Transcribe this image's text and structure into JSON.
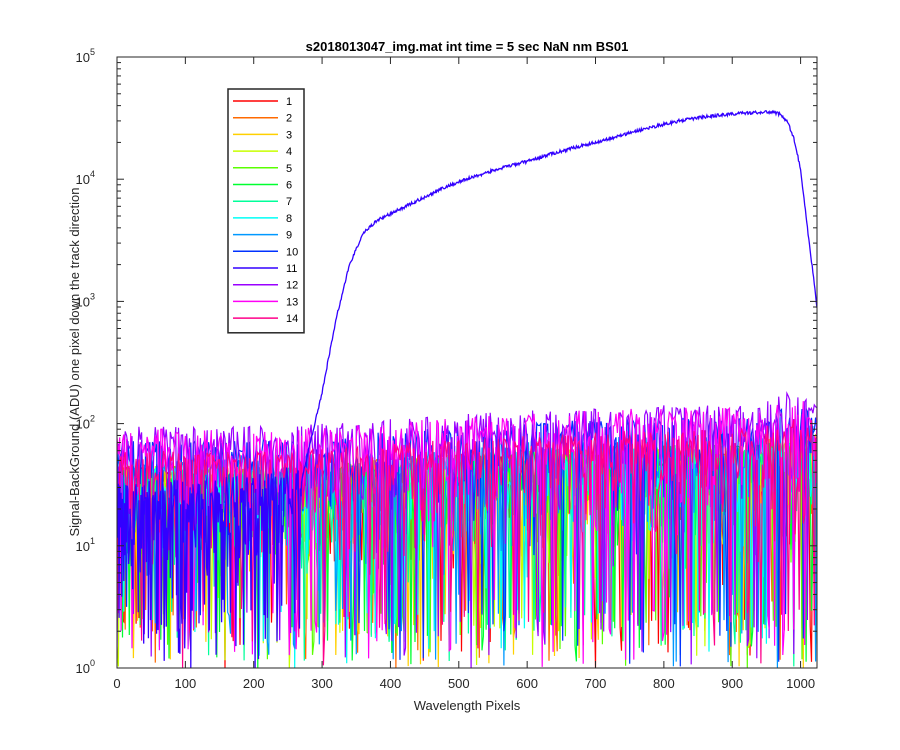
{
  "chart_data": {
    "type": "line",
    "title": "s2018013047_img.mat int time = 5 sec  NaN nm BS01",
    "xlabel": "Wavelength Pixels",
    "ylabel": "Signal-BackGround (ADU) one pixel down the track direction",
    "xlim": [
      0,
      1024
    ],
    "ylim": [
      1,
      100000
    ],
    "yscale": "log",
    "grid": false,
    "legend_position": "top-left",
    "x_ticks": [
      0,
      100,
      200,
      300,
      400,
      500,
      600,
      700,
      800,
      900,
      1000
    ],
    "x_tick_labels": [
      "0",
      "100",
      "200",
      "300",
      "400",
      "500",
      "600",
      "700",
      "800",
      "900",
      "1000"
    ],
    "y_ticks": [
      1,
      10,
      100,
      1000,
      10000,
      100000
    ],
    "y_tick_labels": [
      {
        "base": "10",
        "exp": "0"
      },
      {
        "base": "10",
        "exp": "1"
      },
      {
        "base": "10",
        "exp": "2"
      },
      {
        "base": "10",
        "exp": "3"
      },
      {
        "base": "10",
        "exp": "4"
      },
      {
        "base": "10",
        "exp": "5"
      }
    ],
    "series": [
      {
        "name": "1",
        "color": "#ff0000",
        "envelope": "noise",
        "max": 45
      },
      {
        "name": "2",
        "color": "#ff6a00",
        "envelope": "noise",
        "max": 45
      },
      {
        "name": "3",
        "color": "#ffd000",
        "envelope": "noise",
        "max": 45
      },
      {
        "name": "4",
        "color": "#c8ff00",
        "envelope": "noise",
        "max": 45
      },
      {
        "name": "5",
        "color": "#5aff00",
        "envelope": "noise",
        "max": 45
      },
      {
        "name": "6",
        "color": "#00ff30",
        "envelope": "noise",
        "max": 45
      },
      {
        "name": "7",
        "color": "#00ff9a",
        "envelope": "noise",
        "max": 45
      },
      {
        "name": "8",
        "color": "#00fff6",
        "envelope": "noise",
        "max": 45
      },
      {
        "name": "9",
        "color": "#0099ff",
        "envelope": "noise",
        "max": 55
      },
      {
        "name": "10",
        "color": "#0032ff",
        "envelope": "noise",
        "max": 75
      },
      {
        "name": "11",
        "color": "#3200ff",
        "envelope": "signal",
        "x": [
          0,
          240,
          265,
          280,
          300,
          320,
          340,
          360,
          380,
          400,
          420,
          440,
          460,
          480,
          500,
          520,
          540,
          560,
          580,
          600,
          620,
          640,
          660,
          680,
          700,
          720,
          740,
          760,
          780,
          800,
          820,
          840,
          860,
          880,
          900,
          920,
          940,
          960,
          970,
          980,
          990,
          1000,
          1010,
          1020,
          1024
        ],
        "values": [
          15,
          18,
          25,
          60,
          180,
          700,
          2000,
          3600,
          4600,
          5200,
          5900,
          6700,
          7600,
          8600,
          9500,
          10400,
          11300,
          12200,
          13100,
          14000,
          15200,
          16400,
          17600,
          18800,
          20000,
          21500,
          23000,
          24800,
          26500,
          28200,
          29800,
          31200,
          32400,
          33400,
          34200,
          34800,
          35200,
          35500,
          34000,
          30000,
          22000,
          12000,
          4000,
          1400,
          900
        ]
      },
      {
        "name": "12",
        "color": "#9a00ff",
        "envelope": "noise",
        "max": 95
      },
      {
        "name": "13",
        "color": "#ff00f6",
        "envelope": "noise",
        "max": 90
      },
      {
        "name": "14",
        "color": "#ff008a",
        "envelope": "noise",
        "max": 60
      }
    ]
  }
}
